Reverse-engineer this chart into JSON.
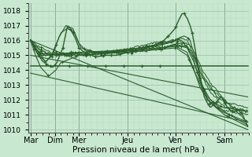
{
  "bg_color": "#c8e8d0",
  "grid_major_color": "#9bbfaa",
  "grid_minor_color": "#b8d8c0",
  "line_color": "#2d5e2d",
  "xlabel": "Pression niveau de la mer( hPa )",
  "ylim": [
    1009.8,
    1018.5
  ],
  "yticks": [
    1010,
    1011,
    1012,
    1013,
    1014,
    1015,
    1016,
    1017,
    1018
  ],
  "day_labels": [
    "Mar",
    "Dim",
    "Mer",
    "Jeu",
    "Ven",
    "Sam"
  ],
  "day_positions": [
    0,
    24,
    48,
    96,
    144,
    192
  ],
  "xlim": [
    -2,
    216
  ],
  "n": 216
}
